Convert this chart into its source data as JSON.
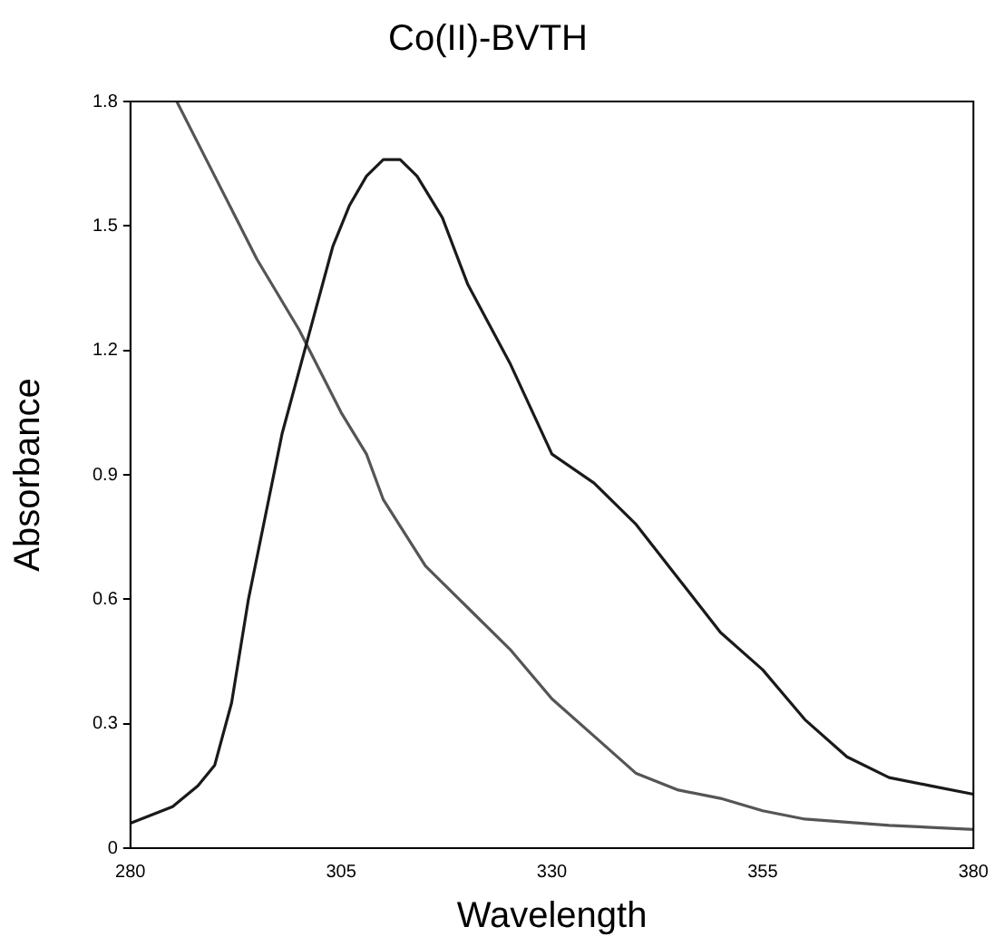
{
  "chart_data": {
    "type": "line",
    "title": "Co(II)-BVTH",
    "xlabel": "Wavelength",
    "ylabel": "Absorbance",
    "xlim": [
      280,
      380
    ],
    "xticks": [
      280,
      305,
      330,
      355,
      380
    ],
    "ylim": [
      0,
      1.8
    ],
    "yticks": [
      0,
      0.3,
      0.6,
      0.9,
      1.2,
      1.5,
      1.8
    ],
    "grid": false,
    "legend": false,
    "marker": "none",
    "line_style": "solid",
    "series": [
      {
        "color": "#1a1a1a",
        "x": [
          280,
          285,
          288,
          290,
          292,
          294,
          296,
          298,
          300,
          302,
          304,
          306,
          308,
          310,
          312,
          314,
          317,
          320,
          325,
          330,
          335,
          340,
          345,
          350,
          355,
          360,
          365,
          370,
          375,
          380
        ],
        "values": [
          0.06,
          0.1,
          0.15,
          0.2,
          0.35,
          0.6,
          0.8,
          1.0,
          1.15,
          1.3,
          1.45,
          1.55,
          1.62,
          1.66,
          1.66,
          1.62,
          1.52,
          1.36,
          1.17,
          0.95,
          0.88,
          0.78,
          0.65,
          0.52,
          0.43,
          0.31,
          0.22,
          0.17,
          0.15,
          0.13
        ]
      },
      {
        "color": "#555555",
        "x": [
          285.5,
          290,
          293,
          295,
          300,
          305,
          308,
          310,
          315,
          320,
          325,
          330,
          335,
          340,
          345,
          350,
          355,
          360,
          370,
          380
        ],
        "values": [
          1.8,
          1.62,
          1.5,
          1.42,
          1.25,
          1.05,
          0.95,
          0.84,
          0.68,
          0.58,
          0.48,
          0.36,
          0.27,
          0.18,
          0.14,
          0.12,
          0.09,
          0.07,
          0.055,
          0.045
        ]
      }
    ]
  }
}
